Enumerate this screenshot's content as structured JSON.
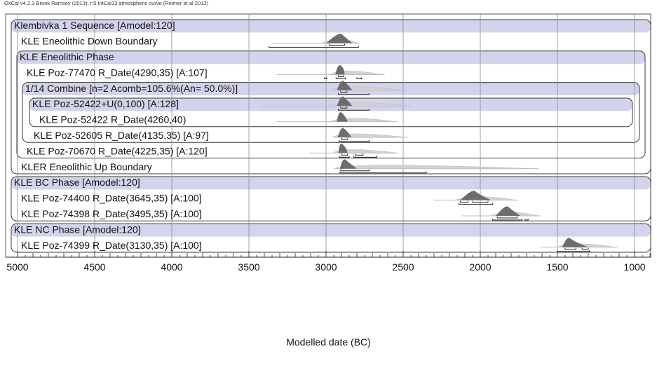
{
  "caption": "OxCal v4.2.3 Bronk Ramsey (2013); r:5 IntCal13 atmospheric curve (Reimer et al 2013)",
  "chart_data": {
    "type": "oxcal-multiplot",
    "title": "",
    "xlabel": "Modelled date (BC)",
    "xlim": [
      5050,
      800
    ],
    "x_ticks": [
      5000,
      4500,
      4000,
      3500,
      3000,
      2500,
      2000,
      1500,
      1000
    ],
    "grid": "vertical lines every 500 years",
    "colors": {
      "header_band": "#d3d3ec",
      "prior": "#d2d2d2",
      "posterior": "#6d6d6d",
      "frame": "#3a3a3a"
    },
    "rows": [
      {
        "label": "Klembivka 1 Sequence [Amodel:120]",
        "header": true,
        "dist": null
      },
      {
        "label": "KLE Eneolithic Down Boundary",
        "header": false,
        "dist": {
          "peak": 2900,
          "peak_from": 3000,
          "peak_to": 2830,
          "tail_from": 3350,
          "tail_to": 2780,
          "range68": [
            [
              2980,
              2880
            ]
          ],
          "range95": [
            [
              3370,
              2790
            ]
          ]
        }
      },
      {
        "label": "KLE Eneolithic Phase",
        "header": true,
        "dist": null
      },
      {
        "label": "KLE Poz-77470 R_Date(4290,35) [A:107]",
        "header": false,
        "dist": {
          "peak": 2905,
          "peak_from": 2940,
          "peak_to": 2880,
          "tail_from": 3320,
          "tail_to": 2620,
          "range68": [
            [
              2920,
              2885
            ]
          ],
          "range95": [
            [
              3010,
              2995
            ],
            [
              2935,
              2875
            ],
            [
              2800,
              2770
            ]
          ]
        }
      },
      {
        "label": "1/14 Combine [n=2 Acomb=105.6%(An= 50.0%)]",
        "header": true,
        "dist": {
          "peak": 2885,
          "peak_from": 2930,
          "peak_to": 2830,
          "tail_from": 2940,
          "tail_to": 2480,
          "range68": [
            [
              2905,
              2865
            ]
          ],
          "range95": [
            [
              2920,
              2720
            ]
          ]
        }
      },
      {
        "label": "KLE Poz-52422+U(0,100) [A:128]",
        "header": true,
        "dist": {
          "peak": 2885,
          "peak_from": 2930,
          "peak_to": 2830,
          "tail_from": 3420,
          "tail_to": 2450,
          "range68": [
            [
              2905,
              2865
            ]
          ],
          "range95": [
            [
              2920,
              2720
            ]
          ]
        }
      },
      {
        "label": "KLE Poz-52422 R_Date(4260,40)",
        "header": false,
        "dist": {
          "peak": 2900,
          "peak_from": 2930,
          "peak_to": 2860,
          "tail_from": 3320,
          "tail_to": 2540,
          "range68": [],
          "range95": []
        }
      },
      {
        "label": "KLE Poz-52605 R_Date(4135,35) [A:97]",
        "header": false,
        "dist": {
          "peak": 2885,
          "peak_from": 2925,
          "peak_to": 2835,
          "tail_from": 2930,
          "tail_to": 2470,
          "range68": [
            [
              2900,
              2860
            ]
          ],
          "range95": [
            [
              2915,
              2720
            ]
          ]
        }
      },
      {
        "label": "KLE Poz-70670 R_Date(4225,35) [A:120]",
        "header": false,
        "dist": {
          "peak": 2895,
          "peak_from": 2920,
          "peak_to": 2860,
          "tail_from": 3110,
          "tail_to": 2530,
          "range68": [
            [
              2900,
              2860
            ],
            [
              2810,
              2760
            ]
          ],
          "range95": [
            [
              2915,
              2850
            ],
            [
              2820,
              2670
            ]
          ]
        }
      },
      {
        "label": "KLER Eneolithic Up Boundary",
        "header": false,
        "dist": {
          "peak": 2875,
          "peak_from": 2910,
          "peak_to": 2800,
          "tail_from": 2920,
          "tail_to": 1620,
          "range68": [
            [
              2905,
              2720
            ]
          ],
          "range95": [
            [
              2910,
              2350
            ]
          ]
        }
      },
      {
        "label": "KLE BC Phase [Amodel:120]",
        "header": true,
        "dist": null
      },
      {
        "label": "KLE Poz-74400 R_Date(3645,35) [A:100]",
        "header": false,
        "dist": {
          "peak": 2035,
          "peak_from": 2130,
          "peak_to": 1930,
          "tail_from": 2300,
          "tail_to": 1760,
          "range68": [
            [
              2130,
              2080
            ],
            [
              2050,
              1950
            ]
          ],
          "range95": [
            [
              2140,
              1920
            ]
          ]
        }
      },
      {
        "label": "KLE Poz-74398 R_Date(3495,35) [A:100]",
        "header": false,
        "dist": {
          "peak": 1820,
          "peak_from": 1900,
          "peak_to": 1740,
          "tail_from": 2120,
          "tail_to": 1610,
          "range68": [
            [
              1890,
              1760
            ]
          ],
          "range95": [
            [
              1920,
              1730
            ],
            [
              1710,
              1690
            ]
          ]
        }
      },
      {
        "label": "KLE NC Phase [Amodel:120]",
        "header": true,
        "dist": null
      },
      {
        "label": "KLE Poz-74399 R_Date(3130,35) [A:100]",
        "header": false,
        "dist": {
          "peak": 1420,
          "peak_from": 1470,
          "peak_to": 1300,
          "tail_from": 1610,
          "tail_to": 1110,
          "range68": [
            [
              1450,
              1380
            ],
            [
              1340,
              1300
            ]
          ],
          "range95": [
            [
              1500,
              1290
            ]
          ]
        }
      }
    ]
  }
}
